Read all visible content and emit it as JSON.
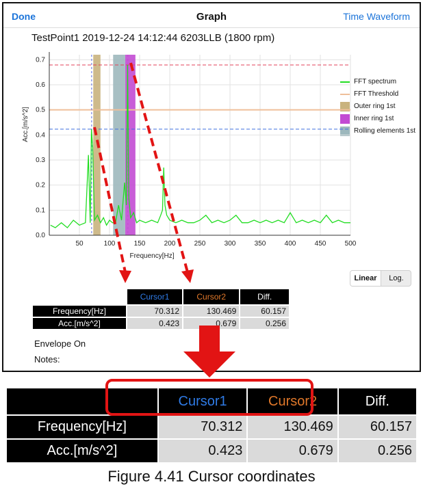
{
  "navbar": {
    "left_label": "Done",
    "title": "Graph",
    "right_label": "Time Waveform"
  },
  "subtitle": "TestPoint1  2019-12-24 14:12:44  6203LLB (1800 rpm)",
  "chart_data": {
    "type": "line",
    "xlabel": "Frequency[Hz]",
    "ylabel": "Acc.[m/s^2]",
    "xlim": [
      0,
      500
    ],
    "ylim": [
      0,
      0.72
    ],
    "x_ticks": [
      50,
      100,
      150,
      200,
      250,
      300,
      350,
      400,
      450,
      500
    ],
    "y_ticks": [
      0.0,
      0.1,
      0.2,
      0.3,
      0.4,
      0.5,
      0.6,
      0.7
    ],
    "y_tick_labels": [
      "0.0",
      "0.1",
      "0.2",
      "0.3",
      "0.4",
      "0.5",
      "0.6",
      "0.7"
    ],
    "grid": true,
    "legend_position": "right",
    "series": [
      {
        "name": "FFT spectrum",
        "color": "#22dd22",
        "x": [
          2,
          10,
          20,
          30,
          40,
          50,
          60,
          65,
          68,
          70,
          72,
          75,
          80,
          85,
          90,
          95,
          100,
          105,
          110,
          115,
          120,
          125,
          128,
          130,
          132,
          135,
          140,
          145,
          150,
          160,
          170,
          180,
          185,
          188,
          190,
          192,
          195,
          200,
          210,
          220,
          230,
          240,
          250,
          260,
          270,
          280,
          290,
          300,
          310,
          320,
          330,
          340,
          350,
          360,
          370,
          380,
          390,
          400,
          410,
          420,
          430,
          440,
          450,
          460,
          470,
          480,
          490,
          500
        ],
        "y": [
          0.04,
          0.03,
          0.05,
          0.03,
          0.06,
          0.04,
          0.05,
          0.32,
          0.05,
          0.423,
          0.35,
          0.06,
          0.08,
          0.05,
          0.07,
          0.04,
          0.06,
          0.05,
          0.05,
          0.12,
          0.06,
          0.21,
          0.12,
          0.68,
          0.15,
          0.07,
          0.09,
          0.05,
          0.06,
          0.05,
          0.06,
          0.05,
          0.08,
          0.1,
          0.27,
          0.12,
          0.08,
          0.06,
          0.05,
          0.06,
          0.05,
          0.05,
          0.06,
          0.08,
          0.05,
          0.06,
          0.05,
          0.06,
          0.08,
          0.05,
          0.05,
          0.06,
          0.05,
          0.06,
          0.05,
          0.06,
          0.05,
          0.09,
          0.05,
          0.06,
          0.05,
          0.06,
          0.05,
          0.08,
          0.05,
          0.06,
          0.05,
          0.05
        ]
      }
    ],
    "fft_threshold": {
      "name": "FFT Threshold",
      "value": 0.5,
      "color": "#efbf9a"
    },
    "band_markers": [
      {
        "name": "Outer ring 1st",
        "x_from": 73,
        "x_to": 85,
        "color": "#c9b37e"
      },
      {
        "name": "Inner ring 1st",
        "x_from": 126,
        "x_to": 143,
        "color": "#c24bd3"
      },
      {
        "name": "Rolling elements 1st",
        "x_from": 106,
        "x_to": 126,
        "color": "#9db8bd"
      }
    ],
    "reference_lines": [
      {
        "value": 0.679,
        "color": "#e0405a"
      },
      {
        "value": 0.423,
        "color": "#3f6fe0"
      }
    ],
    "cursors": [
      {
        "x": 70.312,
        "color": "#5a6be0"
      },
      {
        "x": 130.469,
        "color": "#c24bd3"
      }
    ]
  },
  "scale_toggle": {
    "linear": "Linear",
    "log": "Log."
  },
  "cursor_table": {
    "headers": [
      "Cursor1",
      "Cursor2",
      "Diff."
    ],
    "rows": [
      {
        "label": "Frequency[Hz]",
        "values": [
          "70.312",
          "130.469",
          "60.157"
        ]
      },
      {
        "label": "Acc.[m/s^2]",
        "values": [
          "0.423",
          "0.679",
          "0.256"
        ]
      }
    ]
  },
  "envelope": "Envelope On",
  "notes": "Notes:",
  "caption": "Figure 4.41    Cursor coordinates",
  "annotation_colors": {
    "arrow": "#e21414"
  }
}
